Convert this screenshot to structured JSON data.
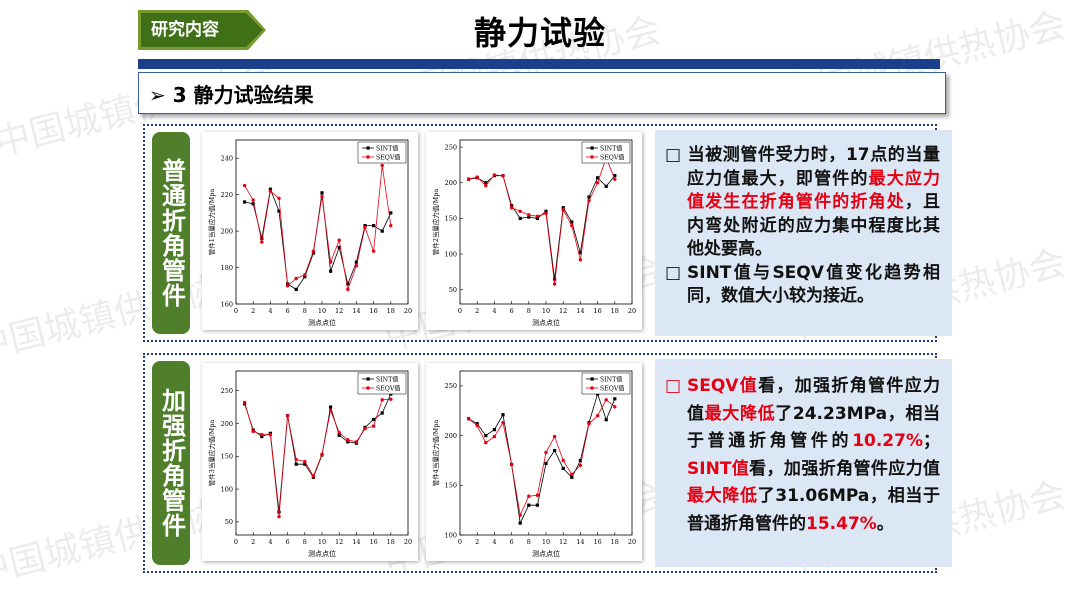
{
  "header": {
    "tag_label": "研究内容",
    "title": "静力试验",
    "section": "➢  3 静力试验结果"
  },
  "watermark": "中国城镇供热协会",
  "panels": [
    {
      "label": "普通折角管件",
      "text": [
        [
          {
            "t": "当被测管件受力时，17点的当量应力值最大，即管件的",
            "red": false
          },
          {
            "t": "最大应力值发生在折角管件的折角处",
            "red": true
          },
          {
            "t": "，且内弯处附近的应力集中程度比其他处要高。",
            "red": false
          }
        ],
        [
          {
            "t": "SINT值与SEQV值变化趋势相同，数值大小较为接近。",
            "red": false
          }
        ]
      ]
    },
    {
      "label": "加强折角管件",
      "text": [
        [
          {
            "t": "SEQV值",
            "red": true
          },
          {
            "t": "看，加强折角管件应力值",
            "red": false
          },
          {
            "t": "最大降低",
            "red": true
          },
          {
            "t": "了24.23MPa，相当于普通折角管件的",
            "red": false
          },
          {
            "t": "10.27%",
            "red": true
          },
          {
            "t": "；",
            "red": false
          },
          {
            "t": "SINT值",
            "red": true
          },
          {
            "t": "看，加强折角管件应力值",
            "red": false
          },
          {
            "t": "最大降低",
            "red": true
          },
          {
            "t": "了31.06MPa，相当于普通折角管件的",
            "red": false
          },
          {
            "t": "15.47%",
            "red": true
          },
          {
            "t": "。",
            "red": false
          }
        ]
      ]
    }
  ],
  "colors": {
    "sint": "#000000",
    "seqv": "#e60012",
    "bar": "#1c3f8c",
    "green": "#4f7f2a",
    "text_red": "#e60012"
  },
  "chart_data": [
    {
      "type": "line",
      "ylabel": "管件1当量应力值/Mpa",
      "xlabel": "测点点位",
      "xlim": [
        0,
        20
      ],
      "xticks": [
        0,
        2,
        4,
        6,
        8,
        10,
        12,
        14,
        16,
        18,
        20
      ],
      "ylim": [
        160,
        250
      ],
      "yticks": [
        160,
        180,
        200,
        220,
        240
      ],
      "legend": {
        "position": "top-right"
      },
      "series": [
        {
          "name": "SINT值",
          "color": "#000000",
          "marker": "square",
          "x": [
            1,
            2,
            3,
            4,
            5,
            6,
            7,
            8,
            9,
            10,
            11,
            12,
            13,
            14,
            15,
            16,
            17,
            18
          ],
          "y": [
            216,
            215,
            196,
            223,
            211,
            171,
            168,
            175,
            188,
            221,
            178,
            191,
            171,
            183,
            203,
            203,
            200,
            210
          ]
        },
        {
          "name": "SEQV值",
          "color": "#e60012",
          "marker": "circle",
          "x": [
            1,
            2,
            3,
            4,
            5,
            6,
            7,
            8,
            9,
            10,
            11,
            12,
            13,
            14,
            15,
            16,
            17,
            18
          ],
          "y": [
            225,
            217,
            194,
            222,
            218,
            170,
            174,
            176,
            189,
            219,
            183,
            195,
            168,
            181,
            202,
            189,
            236,
            203
          ]
        }
      ]
    },
    {
      "type": "line",
      "ylabel": "管件2当量应力值/Mpa",
      "xlabel": "测点点位",
      "xlim": [
        0,
        20
      ],
      "xticks": [
        0,
        2,
        4,
        6,
        8,
        10,
        12,
        14,
        16,
        18,
        20
      ],
      "ylim": [
        30,
        260
      ],
      "yticks": [
        50,
        100,
        150,
        200,
        250
      ],
      "legend": {
        "position": "top-right"
      },
      "series": [
        {
          "name": "SINT值",
          "color": "#000000",
          "marker": "square",
          "x": [
            1,
            2,
            3,
            4,
            5,
            6,
            7,
            8,
            9,
            10,
            11,
            12,
            13,
            14,
            15,
            16,
            17,
            18
          ],
          "y": [
            205,
            207,
            200,
            210,
            210,
            168,
            150,
            152,
            150,
            160,
            65,
            165,
            145,
            102,
            180,
            207,
            195,
            210
          ]
        },
        {
          "name": "SEQV值",
          "color": "#e60012",
          "marker": "circle",
          "x": [
            1,
            2,
            3,
            4,
            5,
            6,
            7,
            8,
            9,
            10,
            11,
            12,
            13,
            14,
            15,
            16,
            17,
            18
          ],
          "y": [
            205,
            208,
            196,
            211,
            210,
            165,
            160,
            155,
            153,
            157,
            58,
            162,
            140,
            92,
            175,
            200,
            235,
            205
          ]
        }
      ]
    },
    {
      "type": "line",
      "ylabel": "管件3当量应力值/Mpa",
      "xlabel": "测点点位",
      "xlim": [
        0,
        20
      ],
      "xticks": [
        0,
        2,
        4,
        6,
        8,
        10,
        12,
        14,
        16,
        18,
        20
      ],
      "ylim": [
        30,
        280
      ],
      "yticks": [
        50,
        100,
        150,
        200,
        250
      ],
      "legend": {
        "position": "top-right"
      },
      "series": [
        {
          "name": "SINT值",
          "color": "#000000",
          "marker": "square",
          "x": [
            1,
            2,
            3,
            4,
            5,
            6,
            7,
            8,
            9,
            10,
            11,
            12,
            13,
            14,
            15,
            16,
            17,
            18
          ],
          "y": [
            230,
            190,
            180,
            185,
            65,
            212,
            138,
            138,
            118,
            152,
            225,
            182,
            172,
            170,
            194,
            206,
            216,
            245
          ]
        },
        {
          "name": "SEQV值",
          "color": "#e60012",
          "marker": "circle",
          "x": [
            1,
            2,
            3,
            4,
            5,
            6,
            7,
            8,
            9,
            10,
            11,
            12,
            13,
            14,
            15,
            16,
            17,
            18
          ],
          "y": [
            232,
            188,
            183,
            183,
            58,
            212,
            145,
            142,
            120,
            153,
            220,
            186,
            175,
            172,
            192,
            196,
            236,
            237
          ]
        }
      ]
    },
    {
      "type": "line",
      "ylabel": "管件4当量应力值/Mpa",
      "xlabel": "测点点位",
      "xlim": [
        0,
        20
      ],
      "xticks": [
        0,
        2,
        4,
        6,
        8,
        10,
        12,
        14,
        16,
        18,
        20
      ],
      "ylim": [
        100,
        265
      ],
      "yticks": [
        100,
        150,
        200,
        250
      ],
      "legend": {
        "position": "top-right"
      },
      "series": [
        {
          "name": "SINT值",
          "color": "#000000",
          "marker": "square",
          "x": [
            1,
            2,
            3,
            4,
            5,
            6,
            7,
            8,
            9,
            10,
            11,
            12,
            13,
            14,
            15,
            16,
            17,
            18
          ],
          "y": [
            217,
            212,
            200,
            206,
            221,
            171,
            112,
            130,
            130,
            172,
            185,
            167,
            158,
            175,
            213,
            242,
            216,
            237
          ]
        },
        {
          "name": "SEQV值",
          "color": "#e60012",
          "marker": "circle",
          "x": [
            1,
            2,
            3,
            4,
            5,
            6,
            7,
            8,
            9,
            10,
            11,
            12,
            13,
            14,
            15,
            16,
            17,
            18
          ],
          "y": [
            217,
            210,
            193,
            199,
            213,
            171,
            120,
            139,
            140,
            183,
            199,
            175,
            161,
            170,
            212,
            220,
            236,
            229
          ]
        }
      ]
    }
  ]
}
